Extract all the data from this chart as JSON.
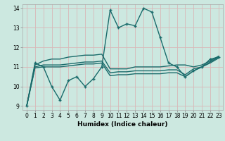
{
  "title": "",
  "xlabel": "Humidex (Indice chaleur)",
  "ylabel": "",
  "bg_color": "#cce8e0",
  "grid_color": "#d9b8b8",
  "line_color": "#1a6b6b",
  "xlim": [
    -0.5,
    23.5
  ],
  "ylim": [
    8.8,
    14.2
  ],
  "yticks": [
    9,
    10,
    11,
    12,
    13,
    14
  ],
  "xticks": [
    0,
    1,
    2,
    3,
    4,
    5,
    6,
    7,
    8,
    9,
    10,
    11,
    12,
    13,
    14,
    15,
    16,
    17,
    18,
    19,
    20,
    21,
    22,
    23
  ],
  "lines": [
    {
      "x": [
        0,
        1,
        2,
        3,
        4,
        5,
        6,
        7,
        8,
        9,
        10,
        11,
        12,
        13,
        14,
        15,
        16,
        17,
        18,
        19,
        20,
        21,
        22,
        23
      ],
      "y": [
        9.0,
        11.2,
        11.0,
        10.0,
        9.3,
        10.3,
        10.5,
        10.0,
        10.4,
        11.0,
        13.9,
        13.0,
        13.2,
        13.1,
        14.0,
        13.8,
        12.5,
        11.2,
        11.0,
        10.5,
        10.8,
        11.0,
        11.4,
        11.5
      ],
      "marker": "+",
      "lw": 1.0
    },
    {
      "x": [
        0,
        1,
        2,
        3,
        4,
        5,
        6,
        7,
        8,
        9,
        10,
        11,
        12,
        13,
        14,
        15,
        16,
        17,
        18,
        19,
        20,
        21,
        22,
        23
      ],
      "y": [
        9.0,
        11.1,
        11.3,
        11.4,
        11.4,
        11.5,
        11.55,
        11.6,
        11.6,
        11.65,
        10.9,
        10.9,
        10.9,
        11.0,
        11.0,
        11.0,
        11.0,
        11.05,
        11.1,
        11.1,
        11.0,
        11.1,
        11.3,
        11.55
      ],
      "marker": null,
      "lw": 1.0
    },
    {
      "x": [
        0,
        1,
        2,
        3,
        4,
        5,
        6,
        7,
        8,
        9,
        10,
        11,
        12,
        13,
        14,
        15,
        16,
        17,
        18,
        19,
        20,
        21,
        22,
        23
      ],
      "y": [
        9.0,
        11.0,
        11.1,
        11.1,
        11.1,
        11.15,
        11.2,
        11.25,
        11.25,
        11.3,
        10.7,
        10.75,
        10.75,
        10.8,
        10.8,
        10.8,
        10.8,
        10.85,
        10.85,
        10.6,
        10.9,
        11.0,
        11.25,
        11.5
      ],
      "marker": null,
      "lw": 1.0
    },
    {
      "x": [
        0,
        1,
        2,
        3,
        4,
        5,
        6,
        7,
        8,
        9,
        10,
        11,
        12,
        13,
        14,
        15,
        16,
        17,
        18,
        19,
        20,
        21,
        22,
        23
      ],
      "y": [
        9.0,
        10.95,
        11.0,
        11.0,
        11.0,
        11.05,
        11.1,
        11.15,
        11.15,
        11.2,
        10.55,
        10.6,
        10.6,
        10.65,
        10.65,
        10.65,
        10.65,
        10.7,
        10.7,
        10.5,
        10.8,
        11.0,
        11.2,
        11.45
      ],
      "marker": null,
      "lw": 1.0
    }
  ]
}
